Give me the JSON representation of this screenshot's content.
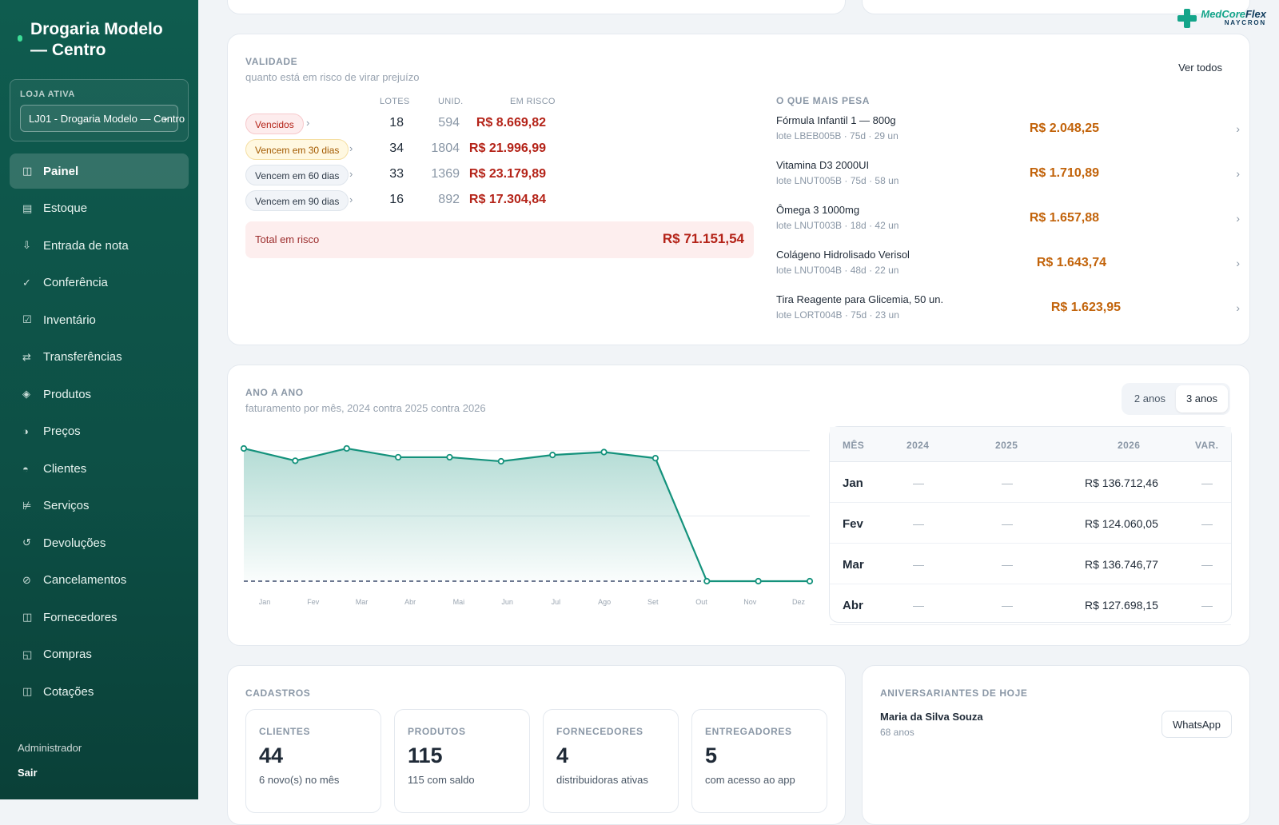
{
  "sidebar": {
    "store_name": "Drogaria Modelo — Centro",
    "store_label": "LOJA ATIVA",
    "store_selected": "LJ01 - Drogaria Modelo — Centro",
    "items": [
      {
        "label": "Painel",
        "icon": "panel-icon"
      },
      {
        "label": "Estoque",
        "icon": "stock-icon"
      },
      {
        "label": "Entrada de nota",
        "icon": "download-icon"
      },
      {
        "label": "Conferência",
        "icon": "check-icon"
      },
      {
        "label": "Inventário",
        "icon": "checkbox-icon"
      },
      {
        "label": "Transferências",
        "icon": "transfer-icon"
      },
      {
        "label": "Produtos",
        "icon": "diamond-icon"
      },
      {
        "label": "Preços",
        "icon": "half-circle-icon"
      },
      {
        "label": "Clientes",
        "icon": "person-icon"
      },
      {
        "label": "Serviços",
        "icon": "service-icon"
      },
      {
        "label": "Devoluções",
        "icon": "return-icon"
      },
      {
        "label": "Cancelamentos",
        "icon": "cancel-icon"
      },
      {
        "label": "Fornecedores",
        "icon": "supplier-icon"
      },
      {
        "label": "Compras",
        "icon": "purchase-icon"
      },
      {
        "label": "Cotações",
        "icon": "quote-icon"
      }
    ],
    "active_item": "Painel",
    "user_role": "Administrador",
    "logout": "Sair"
  },
  "logo": {
    "brand_a": "MedCore",
    "brand_b": "Flex",
    "sub": "NAYCRON"
  },
  "validade": {
    "title": "VALIDADE",
    "subtitle": "quanto está em risco de virar prejuízo",
    "see_all": "Ver todos",
    "headers": {
      "lotes": "LOTES",
      "unid": "UNID.",
      "risk": "EM RISCO"
    },
    "rows": [
      {
        "label": "Vencidos",
        "lotes": "18",
        "unid": "594",
        "risk": "R$ 8.669,82"
      },
      {
        "label": "Vencem em 30 dias",
        "lotes": "34",
        "unid": "1804",
        "risk": "R$ 21.996,99"
      },
      {
        "label": "Vencem em 60 dias",
        "lotes": "33",
        "unid": "1369",
        "risk": "R$ 23.179,89"
      },
      {
        "label": "Vencem em 90 dias",
        "lotes": "16",
        "unid": "892",
        "risk": "R$ 17.304,84"
      }
    ],
    "total_label": "Total em risco",
    "total_value": "R$ 71.151,54",
    "weigh_title": "O QUE MAIS PESA",
    "weigh_items": [
      {
        "name": "Fórmula Infantil 1 — 800g",
        "lot": "lote LBEB005B · 75d · 29 un",
        "value": "R$ 2.048,25"
      },
      {
        "name": "Vitamina D3 2000UI",
        "lot": "lote LNUT005B · 75d · 58 un",
        "value": "R$ 1.710,89"
      },
      {
        "name": "Ômega 3 1000mg",
        "lot": "lote LNUT003B · 18d · 42 un",
        "value": "R$ 1.657,88"
      },
      {
        "name": "Colágeno Hidrolisado Verisol",
        "lot": "lote LNUT004B · 48d · 22 un",
        "value": "R$ 1.643,74"
      },
      {
        "name": "Tira Reagente para Glicemia, 50 un.",
        "lot": "lote LORT004B · 75d · 23 un",
        "value": "R$ 1.623,95"
      }
    ]
  },
  "yoy": {
    "title": "ANO A ANO",
    "subtitle": "faturamento por mês, 2024 contra 2025 contra 2026",
    "seg_2": "2 anos",
    "seg_3": "3 anos",
    "table_headers": {
      "month": "MÊS",
      "y2024": "2024",
      "y2025": "2025",
      "y2026": "2026",
      "var": "VAR."
    },
    "table_rows": [
      {
        "month": "Jan",
        "y2024": "—",
        "y2025": "—",
        "y2026": "R$ 136.712,46",
        "var": "—"
      },
      {
        "month": "Fev",
        "y2024": "—",
        "y2025": "—",
        "y2026": "R$ 124.060,05",
        "var": "—"
      },
      {
        "month": "Mar",
        "y2024": "—",
        "y2025": "—",
        "y2026": "R$ 136.746,77",
        "var": "—"
      },
      {
        "month": "Abr",
        "y2024": "—",
        "y2025": "—",
        "y2026": "R$ 127.698,15",
        "var": "—"
      }
    ]
  },
  "chart_data": {
    "type": "area",
    "categories": [
      "Jan",
      "Fev",
      "Mar",
      "Abr",
      "Mai",
      "Jun",
      "Jul",
      "Ago",
      "Set",
      "Out",
      "Nov",
      "Dez"
    ],
    "series": [
      {
        "values": [
          136712.46,
          124060.05,
          136746.77,
          127698.15,
          127700,
          123500,
          130000,
          133000,
          126700,
          0,
          0,
          0
        ],
        "color": "#14927c"
      },
      {
        "values": [
          0,
          0,
          0,
          0,
          0,
          0,
          0,
          0,
          0,
          0,
          0,
          0
        ],
        "color": "#3b4a6b",
        "style": "dashed"
      }
    ],
    "ylim": [
      0,
      140000
    ],
    "grid": true,
    "title": "",
    "xlabel": "",
    "ylabel": ""
  },
  "cadastros": {
    "title": "CADASTROS",
    "stats": [
      {
        "label": "CLIENTES",
        "value": "44",
        "sub": "6 novo(s) no mês"
      },
      {
        "label": "PRODUTOS",
        "value": "115",
        "sub": "115 com saldo"
      },
      {
        "label": "FORNECEDORES",
        "value": "4",
        "sub": "distribuidoras ativas"
      },
      {
        "label": "ENTREGADORES",
        "value": "5",
        "sub": "com acesso ao app"
      }
    ]
  },
  "birthdays": {
    "title": "ANIVERSARIANTES DE HOJE",
    "name": "Maria da Silva Souza",
    "age": "68 anos",
    "whatsapp": "WhatsApp"
  }
}
